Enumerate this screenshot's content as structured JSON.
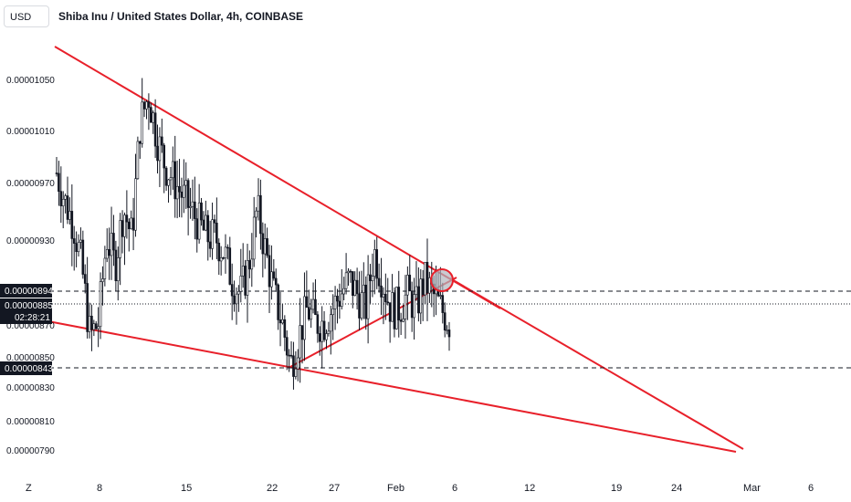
{
  "header": {
    "currency": "USD",
    "title": "Shiba Inu / United States Dollar, 4h, COINBASE"
  },
  "chart_data": {
    "type": "candlestick",
    "y_ticks": [
      "0.00001050",
      "0.00001010",
      "0.00000970",
      "0.00000930",
      "0.00000870",
      "0.00000850",
      "0.00000830",
      "0.00000810",
      "0.00000790"
    ],
    "y_tick_values": [
      1.05e-05,
      1.01e-05,
      9.7e-06,
      9.3e-06,
      8.7e-06,
      8.5e-06,
      8.3e-06,
      8.1e-06,
      7.9e-06
    ],
    "x_ticks": [
      "8",
      "15",
      "22",
      "27",
      "Feb",
      "6",
      "12",
      "19",
      "24",
      "Mar",
      "6"
    ],
    "axis_corner_label": "Z",
    "price_tags": {
      "level_high": "0.00000894",
      "last_price": "0.00000885",
      "countdown": "02:28:21",
      "level_low": "0.00000843"
    },
    "colors": {
      "trendline": "#e8202a",
      "candle": "#131722",
      "highlight": "#b2b5be"
    },
    "close_path": [
      9.85e-06,
      9.65e-06,
      9.5e-06,
      9.2e-06,
      8.7e-06,
      8.8e-06,
      9.4e-06,
      9.2e-06,
      9.6e-06,
      9.4e-06,
      1.02e-05,
      1.04e-05,
      1.01e-05,
      9.9e-06,
      9.8e-06,
      9.7e-06,
      9.6e-06,
      9.5e-06,
      9.4e-06,
      9.4e-06,
      9.3e-06,
      9.1e-06,
      9e-06,
      9.2e-06,
      9.6e-06,
      9.3e-06,
      9e-06,
      8.8e-06,
      8.5e-06,
      8.7e-06,
      8.9e-06,
      8.8e-06,
      8.8e-06,
      8.9e-06,
      9e-06,
      9.1e-06,
      9e-06,
      8.9e-06,
      9.3e-06,
      9.1e-06,
      8.9e-06,
      8.9e-06,
      9e-06,
      8.9e-06,
      9.1e-06,
      9e-06,
      8.9e-06,
      8.8e-06
    ]
  }
}
